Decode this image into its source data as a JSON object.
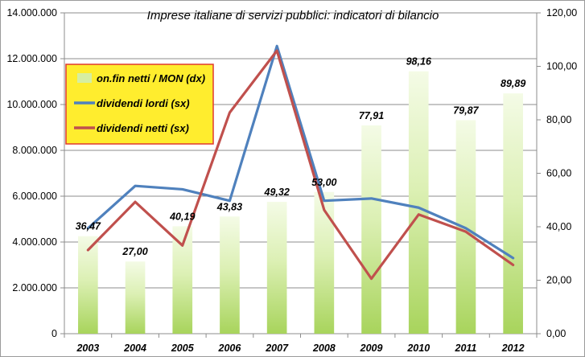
{
  "chart_data": {
    "type": "bar+line",
    "title": "Imprese italiane di servizi pubblici: indicatori di bilancio",
    "categories": [
      "2003",
      "2004",
      "2005",
      "2006",
      "2007",
      "2008",
      "2009",
      "2010",
      "2011",
      "2012"
    ],
    "y_left": {
      "min": 0,
      "max": 14000000,
      "ticks": [
        0,
        2000000,
        4000000,
        6000000,
        8000000,
        10000000,
        12000000,
        14000000
      ],
      "tick_labels": [
        "0",
        "2.000.000",
        "4.000.000",
        "6.000.000",
        "8.000.000",
        "10.000.000",
        "12.000.000",
        "14.000.000"
      ]
    },
    "y_right": {
      "min": 0,
      "max": 120,
      "ticks": [
        0,
        20,
        40,
        60,
        80,
        100,
        120
      ],
      "tick_labels": [
        "0,00",
        "20,00",
        "40,00",
        "60,00",
        "80,00",
        "100,00",
        "120,00"
      ]
    },
    "grid": true,
    "legend_position": "top-left",
    "series": [
      {
        "name": "on.fin netti / MON (dx)",
        "kind": "bar",
        "axis": "right",
        "color": "#c6e58a",
        "values": [
          36.47,
          27.0,
          40.19,
          43.83,
          49.32,
          53.0,
          77.91,
          98.16,
          79.87,
          89.89
        ],
        "data_labels": [
          "36,47",
          "27,00",
          "40,19",
          "43,83",
          "49,32",
          "53,00",
          "77,91",
          "98,16",
          "79,87",
          "89,89"
        ]
      },
      {
        "name": "dividendi lordi (sx)",
        "kind": "line",
        "axis": "left",
        "color": "#4f81bd",
        "values": [
          4600000,
          6450000,
          6300000,
          5800000,
          12550000,
          5800000,
          5900000,
          5500000,
          4600000,
          3300000
        ]
      },
      {
        "name": "dividendi netti (sx)",
        "kind": "line",
        "axis": "left",
        "color": "#c0504d",
        "values": [
          3650000,
          5750000,
          3850000,
          9650000,
          12350000,
          5400000,
          2400000,
          5200000,
          4450000,
          3000000
        ]
      }
    ]
  }
}
